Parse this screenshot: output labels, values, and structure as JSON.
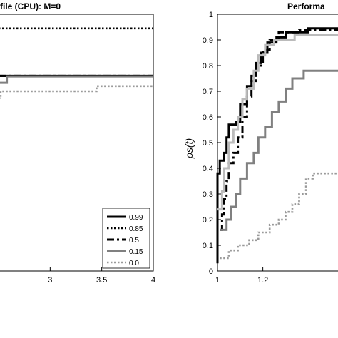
{
  "chart_data": [
    {
      "type": "line",
      "title": "file (CPU): M=0",
      "xlim": [
        2.5,
        4
      ],
      "ylim": [
        0,
        1
      ],
      "xticks": [
        "3",
        "3.5",
        "4"
      ],
      "grid": false,
      "legend_position": "bottom-right",
      "series": [
        {
          "name": "0.99",
          "color": "#000000",
          "style": "solid",
          "points": [
            [
              2.5,
              0.76
            ],
            [
              4,
              0.76
            ]
          ]
        },
        {
          "name": "0.85",
          "color": "#000000",
          "style": "dotted",
          "points": [
            [
              2.5,
              0.945
            ],
            [
              4,
              0.945
            ]
          ]
        },
        {
          "name": "0.5",
          "color": "#000000",
          "style": "dashdot",
          "points": [
            [
              2.5,
              0.76
            ],
            [
              2.8,
              0.76
            ],
            [
              2.8,
              0.76
            ],
            [
              4,
              0.76
            ]
          ]
        },
        {
          "name": "0.15",
          "color": "#808080",
          "style": "solid",
          "points": [
            [
              2.5,
              0.733
            ],
            [
              2.58,
              0.733
            ],
            [
              2.58,
              0.758
            ],
            [
              4,
              0.758
            ]
          ]
        },
        {
          "name": "0.0",
          "color": "#999999",
          "style": "dotted",
          "points": [
            [
              2.5,
              0.673
            ],
            [
              2.52,
              0.673
            ],
            [
              2.52,
              0.7
            ],
            [
              2.98,
              0.7
            ],
            [
              2.98,
              0.7
            ],
            [
              3.45,
              0.7
            ],
            [
              3.45,
              0.72
            ],
            [
              4,
              0.72
            ]
          ]
        }
      ]
    },
    {
      "type": "line",
      "title": "Performa",
      "ylabel": "ρs(t)",
      "xlim": [
        1,
        1.55
      ],
      "ylim": [
        0,
        1
      ],
      "xticks": [
        "1",
        "1.2"
      ],
      "yticks": [
        "0",
        "0.1",
        "0.2",
        "0.3",
        "0.4",
        "0.5",
        "0.6",
        "0.7",
        "0.8",
        "0.9",
        "1"
      ],
      "grid": false,
      "series": [
        {
          "name": "0.99",
          "color": "#000000",
          "style": "solid",
          "points": [
            [
              1,
              0.03
            ],
            [
              1,
              0.38
            ],
            [
              1.01,
              0.38
            ],
            [
              1.01,
              0.43
            ],
            [
              1.03,
              0.43
            ],
            [
              1.03,
              0.46
            ],
            [
              1.04,
              0.46
            ],
            [
              1.04,
              0.52
            ],
            [
              1.05,
              0.52
            ],
            [
              1.05,
              0.57
            ],
            [
              1.08,
              0.57
            ],
            [
              1.08,
              0.58
            ],
            [
              1.1,
              0.58
            ],
            [
              1.1,
              0.65
            ],
            [
              1.13,
              0.65
            ],
            [
              1.13,
              0.72
            ],
            [
              1.15,
              0.72
            ],
            [
              1.15,
              0.76
            ],
            [
              1.17,
              0.76
            ],
            [
              1.17,
              0.81
            ],
            [
              1.19,
              0.81
            ],
            [
              1.19,
              0.85
            ],
            [
              1.22,
              0.85
            ],
            [
              1.22,
              0.89
            ],
            [
              1.26,
              0.89
            ],
            [
              1.26,
              0.91
            ],
            [
              1.3,
              0.91
            ],
            [
              1.3,
              0.93
            ],
            [
              1.4,
              0.93
            ],
            [
              1.4,
              0.945
            ],
            [
              1.55,
              0.945
            ]
          ]
        },
        {
          "name": "0.5",
          "color": "#000000",
          "style": "dashdot",
          "points": [
            [
              1.01,
              0.16
            ],
            [
              1.02,
              0.16
            ],
            [
              1.02,
              0.22
            ],
            [
              1.03,
              0.22
            ],
            [
              1.03,
              0.28
            ],
            [
              1.04,
              0.28
            ],
            [
              1.04,
              0.35
            ],
            [
              1.05,
              0.35
            ],
            [
              1.05,
              0.42
            ],
            [
              1.07,
              0.42
            ],
            [
              1.07,
              0.46
            ],
            [
              1.09,
              0.46
            ],
            [
              1.09,
              0.52
            ],
            [
              1.11,
              0.52
            ],
            [
              1.11,
              0.6
            ],
            [
              1.13,
              0.6
            ],
            [
              1.13,
              0.68
            ],
            [
              1.15,
              0.68
            ],
            [
              1.15,
              0.74
            ],
            [
              1.17,
              0.74
            ],
            [
              1.17,
              0.8
            ],
            [
              1.2,
              0.8
            ],
            [
              1.2,
              0.86
            ],
            [
              1.23,
              0.86
            ],
            [
              1.23,
              0.9
            ],
            [
              1.27,
              0.9
            ],
            [
              1.27,
              0.93
            ],
            [
              1.36,
              0.93
            ],
            [
              1.36,
              0.94
            ],
            [
              1.55,
              0.94
            ]
          ]
        },
        {
          "name": "0.85",
          "color": "#bbbbbb",
          "style": "solid",
          "points": [
            [
              1,
              0.24
            ],
            [
              1.02,
              0.24
            ],
            [
              1.02,
              0.31
            ],
            [
              1.03,
              0.31
            ],
            [
              1.03,
              0.4
            ],
            [
              1.05,
              0.4
            ],
            [
              1.05,
              0.5
            ],
            [
              1.07,
              0.5
            ],
            [
              1.07,
              0.55
            ],
            [
              1.09,
              0.55
            ],
            [
              1.09,
              0.6
            ],
            [
              1.11,
              0.6
            ],
            [
              1.11,
              0.67
            ],
            [
              1.13,
              0.67
            ],
            [
              1.13,
              0.71
            ],
            [
              1.16,
              0.71
            ],
            [
              1.16,
              0.78
            ],
            [
              1.18,
              0.78
            ],
            [
              1.18,
              0.84
            ],
            [
              1.21,
              0.84
            ],
            [
              1.21,
              0.88
            ],
            [
              1.25,
              0.88
            ],
            [
              1.25,
              0.9
            ],
            [
              1.34,
              0.9
            ],
            [
              1.34,
              0.92
            ],
            [
              1.55,
              0.92
            ]
          ]
        },
        {
          "name": "0.15",
          "color": "#808080",
          "style": "solid",
          "points": [
            [
              1.01,
              0.16
            ],
            [
              1.04,
              0.16
            ],
            [
              1.04,
              0.2
            ],
            [
              1.06,
              0.2
            ],
            [
              1.06,
              0.25
            ],
            [
              1.08,
              0.25
            ],
            [
              1.08,
              0.3
            ],
            [
              1.1,
              0.3
            ],
            [
              1.1,
              0.36
            ],
            [
              1.13,
              0.36
            ],
            [
              1.13,
              0.42
            ],
            [
              1.16,
              0.42
            ],
            [
              1.16,
              0.46
            ],
            [
              1.18,
              0.46
            ],
            [
              1.18,
              0.52
            ],
            [
              1.21,
              0.52
            ],
            [
              1.21,
              0.56
            ],
            [
              1.24,
              0.56
            ],
            [
              1.24,
              0.62
            ],
            [
              1.27,
              0.62
            ],
            [
              1.27,
              0.66
            ],
            [
              1.3,
              0.66
            ],
            [
              1.3,
              0.71
            ],
            [
              1.33,
              0.71
            ],
            [
              1.33,
              0.75
            ],
            [
              1.38,
              0.75
            ],
            [
              1.38,
              0.78
            ],
            [
              1.55,
              0.78
            ]
          ]
        },
        {
          "name": "0.0",
          "color": "#999999",
          "style": "dotted",
          "points": [
            [
              1.01,
              0.05
            ],
            [
              1.05,
              0.05
            ],
            [
              1.05,
              0.08
            ],
            [
              1.09,
              0.08
            ],
            [
              1.09,
              0.1
            ],
            [
              1.14,
              0.1
            ],
            [
              1.14,
              0.12
            ],
            [
              1.18,
              0.12
            ],
            [
              1.18,
              0.15
            ],
            [
              1.23,
              0.15
            ],
            [
              1.23,
              0.18
            ],
            [
              1.27,
              0.18
            ],
            [
              1.27,
              0.2
            ],
            [
              1.3,
              0.2
            ],
            [
              1.3,
              0.23
            ],
            [
              1.33,
              0.23
            ],
            [
              1.33,
              0.26
            ],
            [
              1.36,
              0.26
            ],
            [
              1.36,
              0.3
            ],
            [
              1.39,
              0.3
            ],
            [
              1.39,
              0.36
            ],
            [
              1.42,
              0.36
            ],
            [
              1.42,
              0.38
            ],
            [
              1.55,
              0.38
            ]
          ]
        }
      ]
    }
  ]
}
